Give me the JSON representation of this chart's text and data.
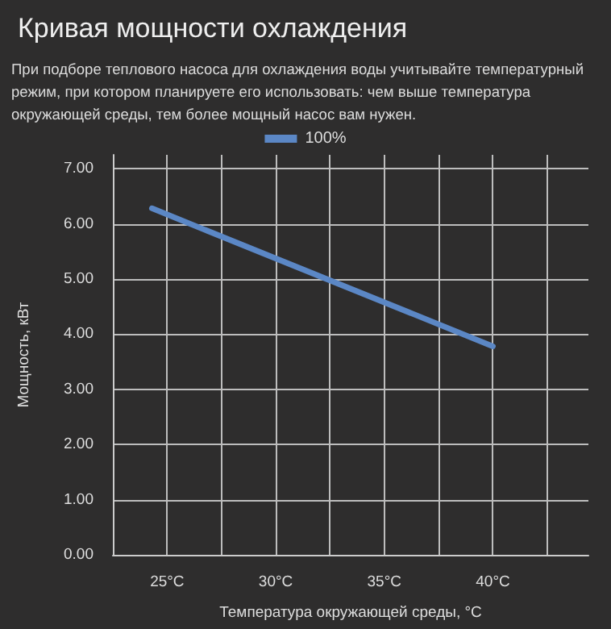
{
  "chart_data": {
    "type": "line",
    "title": "Кривая мощности охлаждения",
    "subtitle": "При подборе теплового насоса для охлаждения воды учитывайте температурный режим, при котором планируете его использовать: чем выше температура окружающей среды, тем более мощный насос вам нужен.",
    "xlabel": "Температура окружающей среды, °C",
    "ylabel": "Мощность, кВт",
    "series": [
      {
        "name": "100%",
        "color": "#5b87c5",
        "x": [
          24.3,
          40
        ],
        "values": [
          6.28,
          3.78
        ]
      }
    ],
    "xlim": [
      22.5,
      44.4
    ],
    "xticks": [
      {
        "value": 25,
        "label": "25°C"
      },
      {
        "value": 27.5,
        "label": null
      },
      {
        "value": 30,
        "label": "30°C"
      },
      {
        "value": 32.5,
        "label": null
      },
      {
        "value": 35,
        "label": "35°C"
      },
      {
        "value": 37.5,
        "label": null
      },
      {
        "value": 40,
        "label": "40°C"
      },
      {
        "value": 42.5,
        "label": null
      }
    ],
    "ylim": [
      0,
      7.25
    ],
    "yticks": [
      {
        "value": 0,
        "label": "0.00"
      },
      {
        "value": 1,
        "label": "1.00"
      },
      {
        "value": 2,
        "label": "2.00"
      },
      {
        "value": 3,
        "label": "3.00"
      },
      {
        "value": 4,
        "label": "4.00"
      },
      {
        "value": 5,
        "label": "5.00"
      },
      {
        "value": 6,
        "label": "6.00"
      },
      {
        "value": 7,
        "label": "7.00"
      }
    ],
    "grid": true,
    "legend": "top",
    "marker": "none",
    "line_style": "solid"
  }
}
